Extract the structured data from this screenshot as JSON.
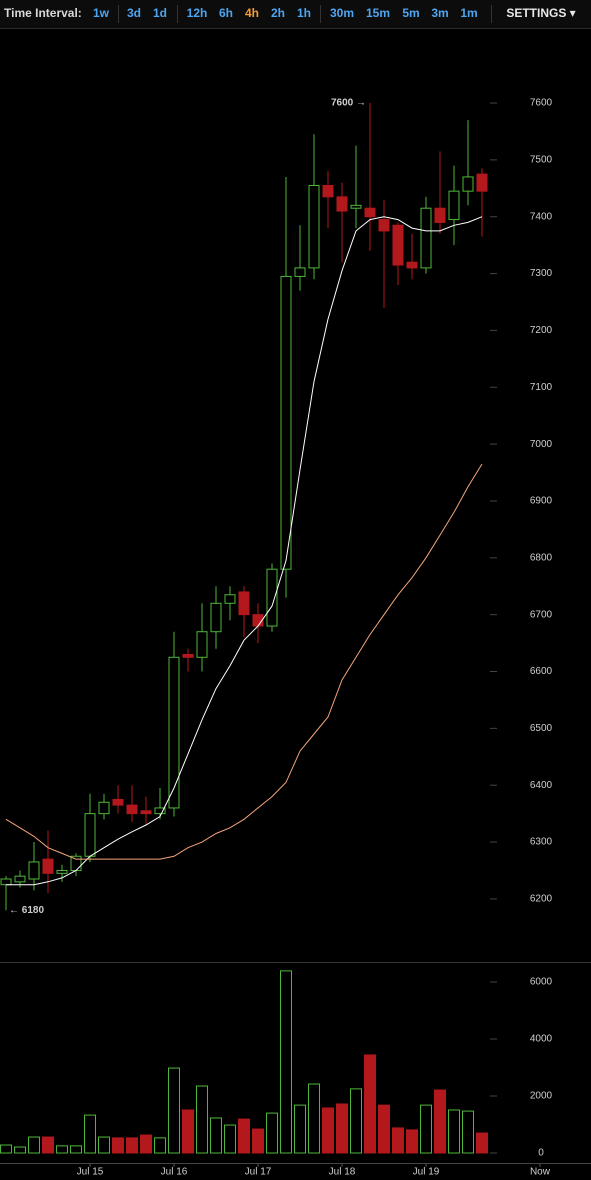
{
  "toolbar": {
    "label": "Time Interval:",
    "groups": [
      [
        "1w",
        "3d",
        "1d"
      ],
      [
        "12h",
        "6h",
        "4h",
        "2h",
        "1h"
      ],
      [
        "30m",
        "15m",
        "5m",
        "3m",
        "1m"
      ]
    ],
    "selected": "4h",
    "settings": "SETTINGS ▾"
  },
  "chart_data": [
    {
      "type": "candlestick",
      "up_color": "#4fb83a",
      "down_color": "#b3191c",
      "open": [
        6225,
        6230,
        6235,
        6270,
        6245,
        6250,
        6275,
        6350,
        6375,
        6365,
        6355,
        6350,
        6360,
        6630,
        6625,
        6670,
        6720,
        6740,
        6700,
        6680,
        6780,
        7295,
        7310,
        7455,
        7435,
        7415,
        7415,
        7395,
        7385,
        7320,
        7310,
        7415,
        7395,
        7445,
        7475
      ],
      "high": [
        6240,
        6250,
        6300,
        6320,
        6260,
        6280,
        6385,
        6385,
        6400,
        6400,
        6380,
        6395,
        6670,
        6640,
        6720,
        6750,
        6750,
        6750,
        6720,
        6790,
        7470,
        7385,
        7545,
        7480,
        7460,
        7525,
        7600,
        7430,
        7390,
        7370,
        7435,
        7515,
        7490,
        7570,
        7485
      ],
      "low": [
        6180,
        6220,
        6215,
        6210,
        6230,
        6240,
        6265,
        6340,
        6350,
        6335,
        6330,
        6340,
        6345,
        6600,
        6600,
        6640,
        6690,
        6660,
        6650,
        6670,
        6730,
        7270,
        7290,
        7380,
        7320,
        7380,
        7340,
        7240,
        7280,
        7290,
        7300,
        7370,
        7350,
        7420,
        7365
      ],
      "close": [
        6235,
        6240,
        6265,
        6245,
        6250,
        6275,
        6350,
        6370,
        6365,
        6350,
        6350,
        6360,
        6625,
        6625,
        6670,
        6720,
        6735,
        6700,
        6680,
        6780,
        7295,
        7310,
        7455,
        7435,
        7410,
        7420,
        7400,
        7375,
        7315,
        7310,
        7415,
        7390,
        7445,
        7470,
        7445
      ],
      "lines": [
        {
          "color": "#ffffff",
          "values": [
            6225,
            6225,
            6225,
            6230,
            6237,
            6250,
            6275,
            6290,
            6305,
            6318,
            6330,
            6345,
            6395,
            6455,
            6515,
            6570,
            6610,
            6655,
            6680,
            6715,
            6795,
            6955,
            7110,
            7220,
            7305,
            7375,
            7395,
            7400,
            7395,
            7380,
            7375,
            7375,
            7385,
            7390,
            7400
          ]
        },
        {
          "color": "#f4a57a",
          "values": [
            6340,
            6325,
            6310,
            6290,
            6280,
            6270,
            6270,
            6270,
            6270,
            6270,
            6270,
            6270,
            6275,
            6290,
            6300,
            6315,
            6325,
            6340,
            6360,
            6380,
            6405,
            6460,
            6490,
            6520,
            6585,
            6625,
            6665,
            6700,
            6735,
            6765,
            6800,
            6840,
            6880,
            6925,
            6965
          ]
        }
      ],
      "annotations": [
        {
          "text": "7600 →",
          "x": 26,
          "y": 7600,
          "align": "right"
        },
        {
          "text": "← 6180",
          "x": 0,
          "y": 6180,
          "align": "left"
        }
      ],
      "xlim": [
        -0.5,
        40.5
      ],
      "ylim": [
        6089,
        7732
      ],
      "yticks": [
        6200,
        6300,
        6400,
        6500,
        6600,
        6700,
        6800,
        6900,
        7000,
        7100,
        7200,
        7300,
        7400,
        7500,
        7600
      ]
    },
    {
      "type": "bar",
      "values": [
        280,
        210,
        560,
        560,
        250,
        250,
        1330,
        560,
        530,
        530,
        630,
        530,
        2980,
        1510,
        2350,
        1230,
        980,
        1190,
        840,
        1400,
        6390,
        1680,
        2420,
        1580,
        1720,
        2250,
        3440,
        1680,
        880,
        810,
        1680,
        2210,
        1510,
        1470,
        700
      ],
      "xlim": [
        -0.5,
        40.5
      ],
      "ylim": [
        -351,
        6702
      ],
      "yticks": [
        0,
        2000,
        4000,
        6000
      ],
      "xticks": [
        {
          "value": 6,
          "label": "Jul 15"
        },
        {
          "value": 12,
          "label": "Jul 16"
        },
        {
          "value": 18,
          "label": "Jul 17"
        },
        {
          "value": 24,
          "label": "Jul 18"
        },
        {
          "value": 30,
          "label": "Jul 19"
        },
        {
          "value": 38.14,
          "label": "Now"
        }
      ]
    }
  ]
}
